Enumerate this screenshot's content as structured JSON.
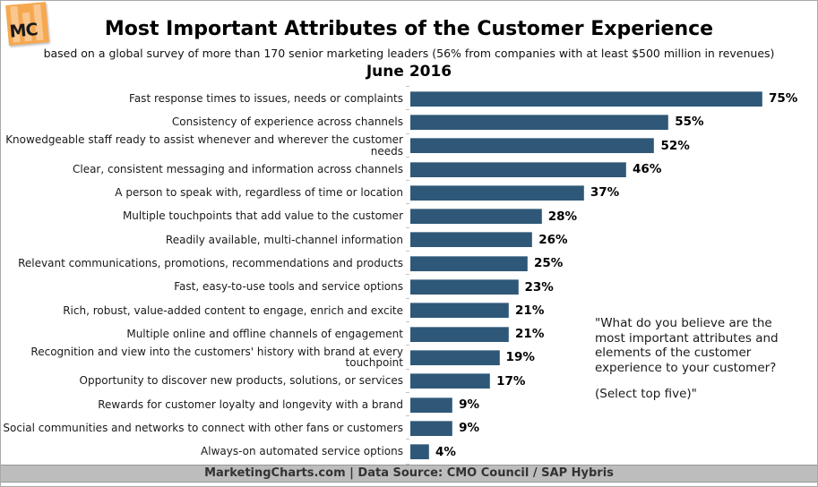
{
  "logo": {
    "text": "MC"
  },
  "header": {
    "title": "Most Important Attributes of the Customer Experience",
    "subtitle": "based on a global survey of more than 170 senior marketing leaders (56% from companies with at least $500 million in revenues)",
    "date": "June 2016"
  },
  "chart_data": {
    "type": "bar",
    "orientation": "horizontal",
    "title": "Most Important Attributes of the Customer Experience",
    "categories": [
      "Fast response times to issues, needs or complaints",
      "Consistency of experience across channels",
      "Knowedgeable staff ready to assist whenever and wherever the customer needs",
      "Clear, consistent messaging and information across channels",
      "A person to speak with, regardless of time or location",
      "Multiple touchpoints that add value to the customer",
      "Readily available, multi-channel information",
      "Relevant communications, promotions, recommendations and products",
      "Fast, easy-to-use tools and service options",
      "Rich, robust, value-added content to engage, enrich and excite",
      "Multiple online and offline channels of engagement",
      "Recognition and view into the customers' history with brand at every touchpoint",
      "Opportunity to discover new products, solutions, or services",
      "Rewards for customer loyalty and longevity with a brand",
      "Social communities and networks to connect with other fans or customers",
      "Always-on automated service options"
    ],
    "values": [
      75,
      55,
      52,
      46,
      37,
      28,
      26,
      25,
      23,
      21,
      21,
      19,
      17,
      9,
      9,
      4
    ],
    "unit": "%",
    "xlim": [
      0,
      80
    ],
    "bar_color": "#2f5878",
    "grid": false,
    "legend": false
  },
  "annotation": {
    "question": "\"What do you believe are the most important attributes and elements of the customer experience to your customer?",
    "instruction": "(Select top five)\""
  },
  "footer": {
    "text": "MarketingCharts.com | Data Source: CMO Council / SAP Hybris"
  }
}
